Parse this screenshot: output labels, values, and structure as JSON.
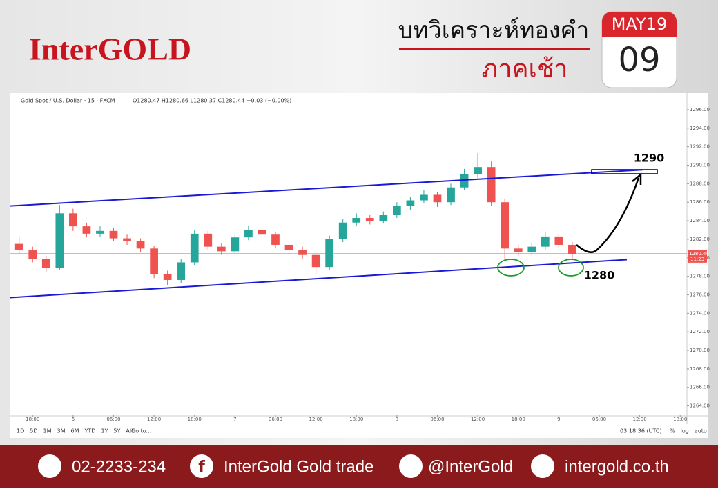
{
  "header": {
    "logo": "InterGOLD",
    "title": "บทวิเคราะห์ทองคำ",
    "subtitle": "ภาคเช้า",
    "calendar": {
      "month": "MAY19",
      "day": "09"
    }
  },
  "chart_data": {
    "type": "candlestick",
    "symbol": "Gold Spot / U.S. Dollar · 15 · FXCM",
    "ohlc_text": "O1280.47 H1280.66 L1280.37 C1280.44 −0.03 (−0.00%)",
    "x": [
      -2,
      0,
      2,
      4,
      6,
      8,
      10,
      12,
      14,
      16,
      18,
      20,
      22,
      24,
      26,
      28,
      30,
      32,
      34,
      36,
      38,
      40,
      42,
      44,
      46,
      48,
      50,
      52,
      54,
      56,
      58,
      60,
      62,
      64,
      66,
      68,
      70,
      72,
      74,
      76,
      78,
      80
    ],
    "open": [
      1281.5,
      1280.8,
      1279.9,
      1278.9,
      1284.8,
      1283.4,
      1282.6,
      1282.9,
      1282.1,
      1281.8,
      1281.0,
      1278.2,
      1277.6,
      1279.5,
      1282.6,
      1281.2,
      1280.7,
      1282.2,
      1283.0,
      1282.5,
      1281.4,
      1280.8,
      1280.3,
      1279.0,
      1282.0,
      1283.8,
      1284.3,
      1284.0,
      1284.6,
      1285.6,
      1286.2,
      1286.8,
      1286.0,
      1287.6,
      1289.0,
      1289.8,
      1286.0,
      1281.0,
      1280.6,
      1281.2,
      1282.3,
      1281.4
    ],
    "high": [
      1282.2,
      1281.2,
      1280.2,
      1285.7,
      1285.3,
      1283.8,
      1283.4,
      1283.2,
      1282.5,
      1282.1,
      1281.3,
      1278.6,
      1279.9,
      1283.0,
      1282.9,
      1281.6,
      1282.6,
      1283.5,
      1283.3,
      1282.8,
      1281.8,
      1281.2,
      1280.6,
      1282.4,
      1284.2,
      1284.8,
      1284.6,
      1285.0,
      1286.0,
      1286.6,
      1287.3,
      1287.1,
      1288.0,
      1289.6,
      1291.3,
      1290.4,
      1286.4,
      1281.4,
      1281.6,
      1282.8,
      1282.6,
      1281.7
    ],
    "low": [
      1280.4,
      1279.5,
      1278.4,
      1278.7,
      1282.9,
      1282.2,
      1282.3,
      1281.8,
      1281.4,
      1280.6,
      1277.8,
      1277.0,
      1277.3,
      1279.2,
      1280.9,
      1280.3,
      1280.4,
      1281.9,
      1282.1,
      1281.0,
      1280.4,
      1279.9,
      1278.2,
      1278.7,
      1281.7,
      1283.4,
      1283.6,
      1283.7,
      1284.3,
      1285.2,
      1285.9,
      1285.5,
      1285.7,
      1287.3,
      1288.6,
      1285.6,
      1279.7,
      1280.2,
      1280.3,
      1280.9,
      1281.0,
      1279.8
    ],
    "close": [
      1280.8,
      1279.9,
      1278.9,
      1284.8,
      1283.4,
      1282.6,
      1282.9,
      1282.1,
      1281.8,
      1281.0,
      1278.2,
      1277.6,
      1279.5,
      1282.6,
      1281.2,
      1280.7,
      1282.2,
      1283.0,
      1282.5,
      1281.4,
      1280.8,
      1280.3,
      1279.0,
      1282.0,
      1283.8,
      1284.3,
      1284.0,
      1284.6,
      1285.6,
      1286.2,
      1286.8,
      1286.0,
      1287.6,
      1289.0,
      1289.8,
      1286.0,
      1281.0,
      1280.6,
      1281.2,
      1282.3,
      1281.4,
      1280.44
    ],
    "up_color": "#26a69a",
    "down_color": "#ef5350",
    "xlim": [
      -3.3,
      97
    ],
    "xticks": [
      {
        "value": 0,
        "label": "18:00"
      },
      {
        "value": 6,
        "label": "6"
      },
      {
        "value": 12,
        "label": "06:00"
      },
      {
        "value": 18,
        "label": "12:00"
      },
      {
        "value": 24,
        "label": "18:00"
      },
      {
        "value": 30,
        "label": "7"
      },
      {
        "value": 36,
        "label": "06:00"
      },
      {
        "value": 42,
        "label": "12:00"
      },
      {
        "value": 48,
        "label": "18:00"
      },
      {
        "value": 54,
        "label": "8"
      },
      {
        "value": 60,
        "label": "06:00"
      },
      {
        "value": 66,
        "label": "12:00"
      },
      {
        "value": 72,
        "label": "18:00"
      },
      {
        "value": 78,
        "label": "9"
      },
      {
        "value": 84,
        "label": "06:00"
      },
      {
        "value": 90,
        "label": "12:00"
      },
      {
        "value": 96,
        "label": "18:00"
      }
    ],
    "ylim": [
      1263,
      1297.5
    ],
    "yticks": [
      {
        "value": 1264,
        "label": "1264.00"
      },
      {
        "value": 1266,
        "label": "1266.00"
      },
      {
        "value": 1268,
        "label": "1268.00"
      },
      {
        "value": 1270,
        "label": "1270.00"
      },
      {
        "value": 1272,
        "label": "1272.00"
      },
      {
        "value": 1274,
        "label": "1274.00"
      },
      {
        "value": 1276,
        "label": "1276.00"
      },
      {
        "value": 1278,
        "label": "1278.00"
      },
      {
        "value": 1280,
        "label": "1280.00"
      },
      {
        "value": 1282,
        "label": "1282.00"
      },
      {
        "value": 1284,
        "label": "1284.00"
      },
      {
        "value": 1286,
        "label": "1286.00"
      },
      {
        "value": 1288,
        "label": "1288.00"
      },
      {
        "value": 1290,
        "label": "1290.00"
      },
      {
        "value": 1292,
        "label": "1292.00"
      },
      {
        "value": 1294,
        "label": "1294.00"
      },
      {
        "value": 1296,
        "label": "1296.00"
      }
    ],
    "last_price": {
      "value": 1280.44,
      "label": "1280.44"
    },
    "countdown": "11:23",
    "channel": [
      {
        "x": [
          -3.3,
          90.4
        ],
        "y": [
          1285.6,
          1289.5
        ]
      },
      {
        "x": [
          -3.3,
          88.1
        ],
        "y": [
          1275.7,
          1279.8
        ]
      }
    ],
    "channel_color": "#1a1ad6",
    "levels": [
      1290,
      1280
    ]
  },
  "toolbar": {
    "ranges": [
      "1D",
      "5D",
      "1M",
      "3M",
      "6M",
      "YTD",
      "1Y",
      "5Y",
      "All"
    ],
    "goto": "Go to...",
    "clock": "03:18:36 (UTC)",
    "options": [
      "%",
      "log",
      "auto"
    ]
  },
  "footer": {
    "phone": "02-2233-234",
    "facebook": "InterGold Gold trade",
    "line": "@InterGold",
    "web": "intergold.co.th"
  }
}
